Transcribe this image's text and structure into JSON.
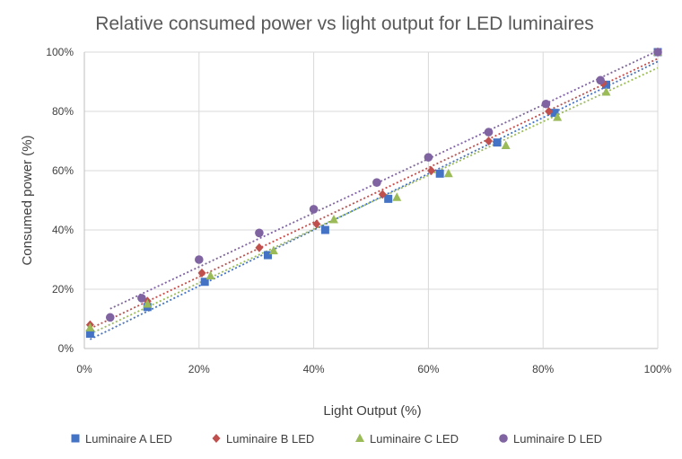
{
  "chart_data": {
    "type": "scatter",
    "title": "Relative consumed power vs light output for LED luminaires",
    "xlabel": "Light Output (%)",
    "ylabel": "Consumed power (%)",
    "xlim": [
      0,
      100
    ],
    "ylim": [
      0,
      100
    ],
    "xticks": [
      "0%",
      "20%",
      "40%",
      "60%",
      "80%",
      "100%"
    ],
    "yticks": [
      "0%",
      "20%",
      "40%",
      "60%",
      "80%",
      "100%"
    ],
    "grid": true,
    "legend_position": "bottom",
    "trendlines": "dotted linear",
    "series": [
      {
        "name": "Luminaire A LED",
        "color": "#4472c4",
        "marker": "square",
        "x": [
          1,
          11,
          21,
          32,
          42,
          53,
          62,
          72,
          82,
          91,
          100
        ],
        "y": [
          5,
          14,
          22.5,
          31.5,
          40,
          50.5,
          59,
          69.5,
          79.5,
          89,
          100
        ]
      },
      {
        "name": "Luminaire B LED",
        "color": "#c0504d",
        "marker": "diamond",
        "x": [
          1,
          11,
          20.5,
          30.5,
          40.5,
          52,
          60.5,
          70.5,
          81,
          90.5,
          100
        ],
        "y": [
          8,
          16,
          25.5,
          34,
          42,
          52,
          60,
          70,
          80,
          89.5,
          100
        ]
      },
      {
        "name": "Luminaire C LED",
        "color": "#9bbb59",
        "marker": "triangle",
        "x": [
          1,
          11,
          22,
          33,
          43.5,
          54.5,
          63.5,
          73.5,
          82.5,
          91,
          100
        ],
        "y": [
          7,
          15,
          24.5,
          33,
          43.5,
          51,
          59,
          68.5,
          78,
          86.5,
          100
        ]
      },
      {
        "name": "Luminaire D LED",
        "color": "#8064a2",
        "marker": "circle",
        "x": [
          4.5,
          10,
          20,
          30.5,
          40,
          51,
          60,
          70.5,
          80.5,
          90,
          100
        ],
        "y": [
          10.5,
          17,
          30,
          39,
          47,
          56,
          64.5,
          73,
          82.5,
          90.5,
          100
        ]
      }
    ]
  }
}
